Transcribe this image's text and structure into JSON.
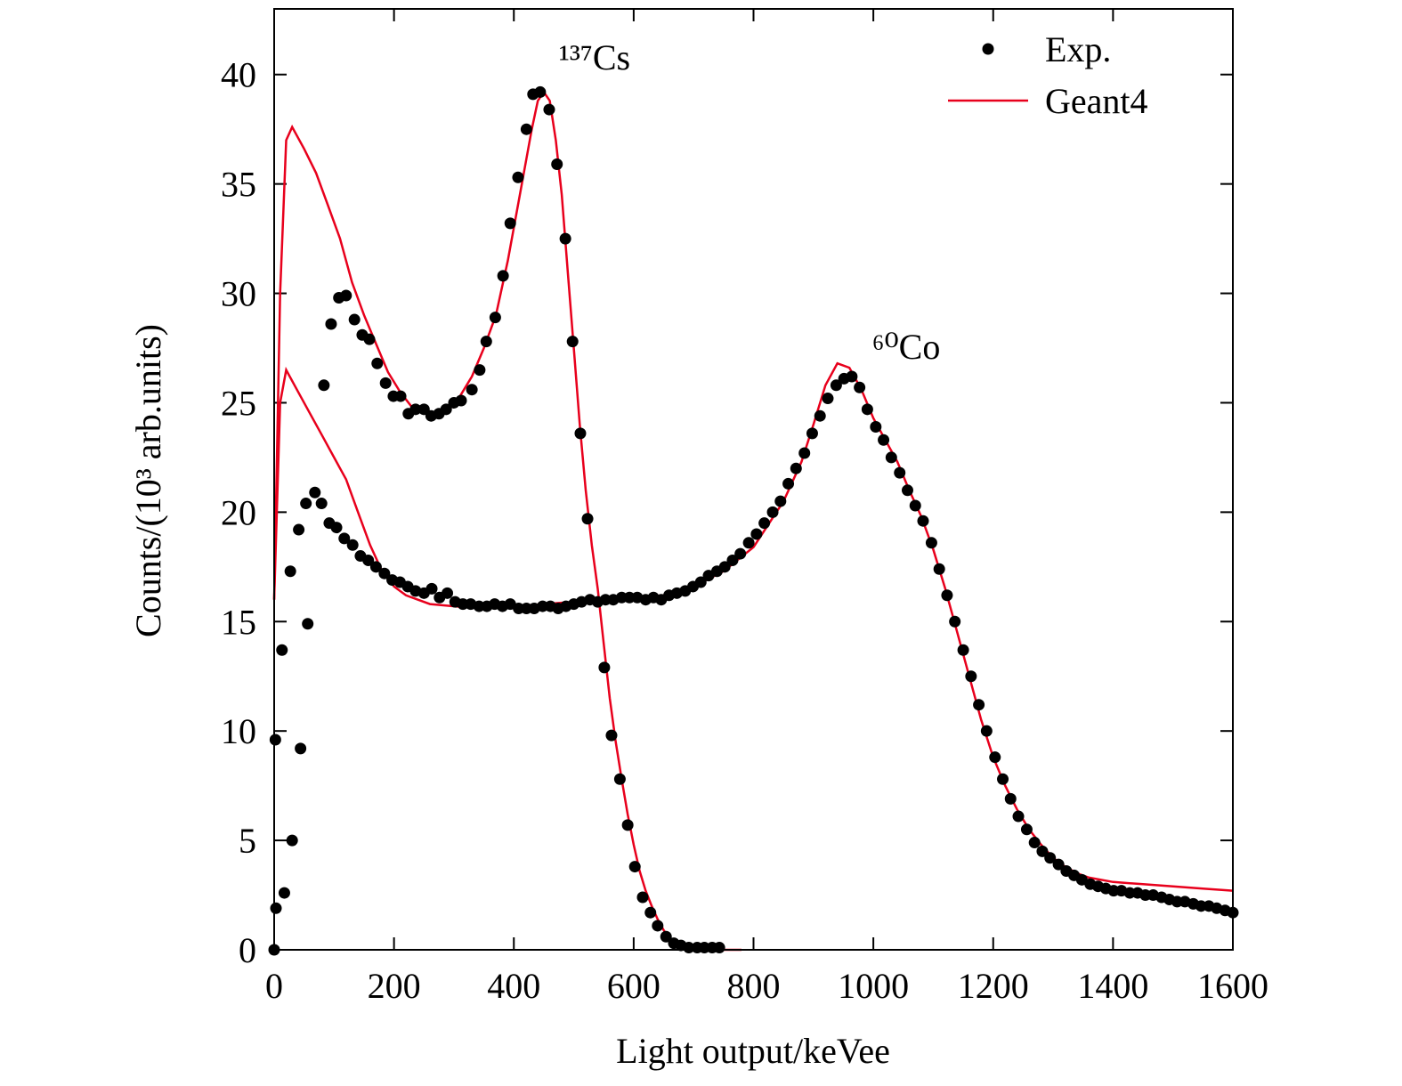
{
  "chart_data": {
    "type": "scatter",
    "xlabel": "Light output/keVee",
    "ylabel": "Counts/(10³ arb.units)",
    "xlim": [
      0,
      1600
    ],
    "ylim": [
      0,
      43
    ],
    "xticks": [
      0,
      200,
      400,
      600,
      800,
      1000,
      1200,
      1400,
      1600
    ],
    "yticks": [
      0,
      5,
      10,
      15,
      20,
      25,
      30,
      35,
      40
    ],
    "legend": "upper right",
    "annotations": [
      "¹³⁷Cs",
      "⁶⁰Co"
    ],
    "series": [
      {
        "name": "Exp.",
        "color": "#000000",
        "style": "markers",
        "x": [
          0,
          3,
          17,
          30,
          44,
          56,
          83,
          95,
          108,
          120,
          134,
          147,
          159,
          172,
          186,
          199,
          211,
          224,
          236,
          250,
          262,
          275,
          287,
          300,
          312,
          330,
          343,
          354,
          369,
          382,
          394,
          407,
          421,
          432,
          444,
          459,
          472,
          486,
          498,
          511,
          523,
          551,
          563,
          577,
          590,
          602,
          615,
          628,
          640,
          654,
          667,
          679,
          692,
          706,
          718,
          731,
          743
        ],
        "values": [
          0,
          1.9,
          2.6,
          5.0,
          9.2,
          14.9,
          25.8,
          28.6,
          29.8,
          29.9,
          28.8,
          28.1,
          27.9,
          26.8,
          25.9,
          25.3,
          25.3,
          24.5,
          24.7,
          24.7,
          24.4,
          24.5,
          24.7,
          25.0,
          25.1,
          25.6,
          26.5,
          27.8,
          28.9,
          30.8,
          33.2,
          35.3,
          37.5,
          39.1,
          39.2,
          38.4,
          35.9,
          32.5,
          27.8,
          23.6,
          19.7,
          12.9,
          9.8,
          7.8,
          5.7,
          3.8,
          2.4,
          1.7,
          1.1,
          0.6,
          0.3,
          0.2,
          0.1,
          0.1,
          0.1,
          0.1,
          0.1
        ]
      },
      {
        "name": "Geant4",
        "color": "#e8001c",
        "style": "line",
        "x": [
          0,
          10,
          20,
          30,
          50,
          70,
          90,
          110,
          130,
          150,
          170,
          190,
          210,
          230,
          250,
          270,
          290,
          310,
          330,
          350,
          370,
          390,
          410,
          430,
          440,
          450,
          460,
          470,
          480,
          490,
          500,
          510,
          520,
          530,
          540,
          550,
          560,
          570,
          580,
          590,
          600,
          610,
          620,
          630,
          640,
          650,
          660,
          670,
          690,
          720,
          780
        ],
        "values": [
          16,
          30,
          37,
          37.6,
          36.6,
          35.5,
          34,
          32.5,
          30.5,
          29,
          27.7,
          26.4,
          25.5,
          24.8,
          24.6,
          24.5,
          24.6,
          25.3,
          26.2,
          27.5,
          29,
          31.5,
          34.5,
          37.5,
          38.8,
          39.2,
          38.8,
          37,
          34.5,
          31,
          27.5,
          24,
          21,
          18.5,
          16.5,
          14,
          11.5,
          9.5,
          7.8,
          6.2,
          4.8,
          3.6,
          2.7,
          2.0,
          1.4,
          0.9,
          0.5,
          0.3,
          0.1,
          0,
          0
        ]
      },
      {
        "name": "Exp.",
        "color": "#000000",
        "style": "markers",
        "x": [
          2,
          13,
          27,
          41,
          53,
          68,
          79,
          92,
          104,
          117,
          131,
          144,
          157,
          170,
          184,
          197,
          210,
          223,
          236,
          250,
          263,
          276,
          289,
          302,
          315,
          328,
          342,
          355,
          368,
          381,
          394,
          408,
          421,
          434,
          448,
          461,
          474,
          487,
          500,
          513,
          527,
          540,
          553,
          566,
          580,
          593,
          606,
          620,
          633,
          646,
          659,
          672,
          686,
          699,
          712,
          725,
          739,
          752,
          765,
          778,
          792,
          805,
          818,
          832,
          845,
          858,
          871,
          885,
          898,
          911,
          924,
          938,
          951,
          964,
          977,
          990,
          1004,
          1017,
          1030,
          1044,
          1057,
          1070,
          1083,
          1097,
          1110,
          1123,
          1136,
          1150,
          1163,
          1176,
          1189,
          1203,
          1216,
          1229,
          1242,
          1256,
          1269,
          1282,
          1295,
          1309,
          1322,
          1335,
          1348,
          1362,
          1375,
          1388,
          1401,
          1414,
          1428,
          1441,
          1454,
          1467,
          1481,
          1494,
          1507,
          1520,
          1534,
          1547,
          1560,
          1573,
          1587,
          1600
        ],
        "values": [
          9.6,
          13.7,
          17.3,
          19.2,
          20.4,
          20.9,
          20.4,
          19.5,
          19.3,
          18.8,
          18.5,
          18.0,
          17.8,
          17.5,
          17.2,
          16.9,
          16.8,
          16.6,
          16.4,
          16.3,
          16.5,
          16.1,
          16.3,
          15.9,
          15.8,
          15.8,
          15.7,
          15.7,
          15.8,
          15.7,
          15.8,
          15.6,
          15.6,
          15.6,
          15.7,
          15.7,
          15.6,
          15.7,
          15.8,
          15.9,
          16.0,
          15.9,
          16.0,
          16.0,
          16.1,
          16.1,
          16.1,
          16.0,
          16.1,
          16.0,
          16.2,
          16.3,
          16.4,
          16.6,
          16.8,
          17.1,
          17.3,
          17.5,
          17.8,
          18.1,
          18.6,
          19.0,
          19.5,
          20.0,
          20.5,
          21.3,
          22.0,
          22.7,
          23.6,
          24.4,
          25.2,
          25.8,
          26.1,
          26.2,
          25.7,
          24.7,
          23.9,
          23.3,
          22.5,
          21.8,
          21.0,
          20.3,
          19.6,
          18.6,
          17.4,
          16.2,
          15.0,
          13.7,
          12.5,
          11.2,
          10.0,
          8.8,
          7.8,
          6.9,
          6.1,
          5.5,
          4.9,
          4.5,
          4.2,
          3.9,
          3.6,
          3.4,
          3.2,
          3.0,
          2.9,
          2.8,
          2.7,
          2.7,
          2.6,
          2.6,
          2.5,
          2.5,
          2.4,
          2.3,
          2.2,
          2.2,
          2.1,
          2.0,
          2.0,
          1.9,
          1.8,
          1.7
        ]
      },
      {
        "name": "Geant4",
        "color": "#e8001c",
        "style": "line",
        "x": [
          0,
          10,
          20,
          40,
          60,
          80,
          100,
          120,
          140,
          160,
          180,
          200,
          220,
          240,
          260,
          300,
          350,
          400,
          450,
          500,
          550,
          600,
          650,
          700,
          750,
          800,
          850,
          880,
          900,
          920,
          940,
          960,
          980,
          1000,
          1020,
          1040,
          1060,
          1080,
          1100,
          1120,
          1140,
          1160,
          1180,
          1200,
          1220,
          1240,
          1260,
          1280,
          1300,
          1320,
          1340,
          1360,
          1400,
          1450,
          1500,
          1550,
          1600
        ],
        "values": [
          16,
          25,
          26.5,
          25.5,
          24.5,
          23.5,
          22.5,
          21.5,
          20,
          18.5,
          17.3,
          16.6,
          16.2,
          16.0,
          15.8,
          15.7,
          15.6,
          15.7,
          15.8,
          15.9,
          16.0,
          16.1,
          16.2,
          16.6,
          17.3,
          18.4,
          20.5,
          22.3,
          24.0,
          25.8,
          26.8,
          26.6,
          25.6,
          24.3,
          23.3,
          22.3,
          21.0,
          19.8,
          18.3,
          16.5,
          14.5,
          12.5,
          10.5,
          8.8,
          7.5,
          6.4,
          5.5,
          4.8,
          4.2,
          3.8,
          3.5,
          3.3,
          3.1,
          3.0,
          2.9,
          2.8,
          2.7
        ]
      }
    ]
  }
}
